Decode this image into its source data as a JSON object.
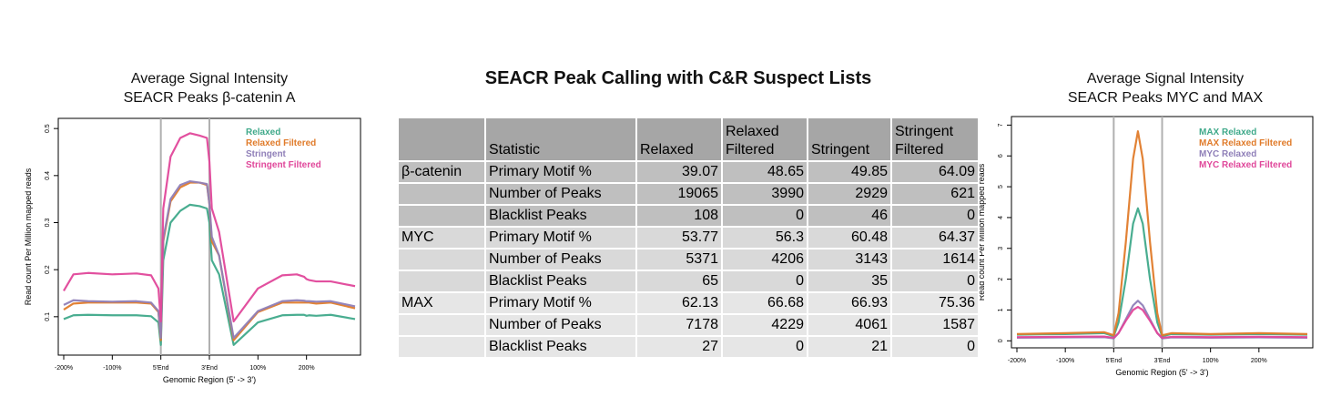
{
  "left_chart_title": [
    "Average Signal Intensity",
    "SEACR Peaks β-catenin A"
  ],
  "center_title": "SEACR Peak Calling with C&R Suspect Lists",
  "right_chart_title": [
    "Average Signal Intensity",
    "SEACR Peaks MYC and MAX"
  ],
  "table": {
    "headers": [
      "",
      "Statistic",
      "Relaxed",
      "Relaxed Filtered",
      "Stringent",
      "Stringent Filtered"
    ],
    "rows": [
      [
        "β-catenin",
        "Primary Motif %",
        "39.07",
        "48.65",
        "49.85",
        "64.09"
      ],
      [
        "",
        "Number of Peaks",
        "19065",
        "3990",
        "2929",
        "621"
      ],
      [
        "",
        "Blacklist Peaks",
        "108",
        "0",
        "46",
        "0"
      ],
      [
        "MYC",
        "Primary Motif %",
        "53.77",
        "56.3",
        "60.48",
        "64.37"
      ],
      [
        "",
        "Number of Peaks",
        "5371",
        "4206",
        "3143",
        "1614"
      ],
      [
        "",
        "Blacklist Peaks",
        "65",
        "0",
        "35",
        "0"
      ],
      [
        "MAX",
        "Primary Motif %",
        "62.13",
        "66.68",
        "66.93",
        "75.36"
      ],
      [
        "",
        "Number of Peaks",
        "7178",
        "4229",
        "4061",
        "1587"
      ],
      [
        "",
        "Blacklist Peaks",
        "27",
        "0",
        "21",
        "0"
      ]
    ]
  },
  "chart_data": [
    {
      "type": "line",
      "title": "Average Signal Intensity SEACR Peaks β-catenin A",
      "xlabel": "Genomic Region (5' -> 3')",
      "ylabel": "Read count Per Million mapped reads",
      "x_ticks": [
        "-200%",
        "-100%",
        "5'End",
        "3'End",
        "100%",
        "200%"
      ],
      "y_ticks": [
        "0.1",
        "0.2",
        "0.3",
        "0.4",
        "0.5"
      ],
      "ylim": [
        0.03,
        0.51
      ],
      "legend_position": "top-right",
      "series": [
        {
          "name": "Relaxed",
          "color": "#3fa98a",
          "x": [
            -200,
            -180,
            -150,
            -100,
            -50,
            -20,
            -5,
            0,
            5,
            20,
            40,
            60,
            80,
            95,
            100,
            105,
            120,
            150,
            200,
            250,
            280,
            295,
            300,
            305,
            320,
            350,
            400
          ],
          "y": [
            0.095,
            0.103,
            0.104,
            0.103,
            0.103,
            0.101,
            0.088,
            0.04,
            0.22,
            0.3,
            0.325,
            0.338,
            0.335,
            0.33,
            0.3,
            0.22,
            0.19,
            0.04,
            0.088,
            0.103,
            0.104,
            0.104,
            0.102,
            0.103,
            0.102,
            0.104,
            0.095
          ],
          "_x_note": "x in % of region; 0 = 5'End, 100 = 3'End"
        },
        {
          "name": "Relaxed Filtered",
          "color": "#e07b2a",
          "x": [
            -200,
            -180,
            -150,
            -100,
            -50,
            -20,
            -5,
            0,
            5,
            20,
            40,
            60,
            80,
            95,
            100,
            105,
            120,
            150,
            200,
            250,
            280,
            295,
            300,
            305,
            320,
            350,
            400
          ],
          "y": [
            0.115,
            0.128,
            0.13,
            0.13,
            0.13,
            0.128,
            0.11,
            0.05,
            0.26,
            0.345,
            0.375,
            0.385,
            0.385,
            0.38,
            0.34,
            0.26,
            0.23,
            0.05,
            0.11,
            0.13,
            0.13,
            0.13,
            0.13,
            0.13,
            0.128,
            0.13,
            0.118
          ]
        },
        {
          "name": "Stringent",
          "color": "#8f7fb8",
          "x": [
            -200,
            -180,
            -150,
            -100,
            -50,
            -20,
            -5,
            0,
            5,
            20,
            40,
            60,
            80,
            95,
            100,
            105,
            120,
            150,
            200,
            250,
            280,
            295,
            300,
            305,
            320,
            350,
            400
          ],
          "y": [
            0.125,
            0.135,
            0.133,
            0.132,
            0.133,
            0.13,
            0.112,
            0.055,
            0.265,
            0.35,
            0.38,
            0.388,
            0.385,
            0.382,
            0.34,
            0.27,
            0.23,
            0.055,
            0.112,
            0.133,
            0.135,
            0.134,
            0.133,
            0.133,
            0.132,
            0.133,
            0.122
          ]
        },
        {
          "name": "Stringent Filtered",
          "color": "#e0479a",
          "x": [
            -200,
            -180,
            -150,
            -100,
            -50,
            -20,
            -5,
            0,
            5,
            20,
            40,
            60,
            80,
            95,
            100,
            105,
            120,
            150,
            200,
            250,
            280,
            295,
            300,
            305,
            320,
            350,
            400
          ],
          "y": [
            0.155,
            0.19,
            0.193,
            0.19,
            0.192,
            0.188,
            0.16,
            0.09,
            0.33,
            0.44,
            0.48,
            0.49,
            0.485,
            0.48,
            0.43,
            0.33,
            0.28,
            0.09,
            0.16,
            0.188,
            0.19,
            0.185,
            0.18,
            0.178,
            0.175,
            0.175,
            0.165
          ]
        }
      ]
    },
    {
      "type": "line",
      "title": "Average Signal Intensity SEACR Peaks MYC and MAX",
      "xlabel": "Genomic Region (5' -> 3')",
      "ylabel": "Read count Per Million mapped reads",
      "x_ticks": [
        "-200%",
        "-100%",
        "5'End",
        "3'End",
        "100%",
        "200%"
      ],
      "y_ticks": [
        "0",
        "1",
        "2",
        "3",
        "4",
        "5",
        "6",
        "7"
      ],
      "ylim": [
        -0.05,
        7.1
      ],
      "legend_position": "top-right",
      "series": [
        {
          "name": "MAX Relaxed",
          "color": "#3fa98a",
          "x": [
            -200,
            -100,
            -20,
            0,
            10,
            25,
            40,
            50,
            60,
            75,
            90,
            100,
            120,
            200,
            300,
            400
          ],
          "y": [
            0.2,
            0.22,
            0.25,
            0.15,
            0.6,
            2.0,
            3.8,
            4.3,
            3.8,
            2.0,
            0.6,
            0.15,
            0.22,
            0.2,
            0.22,
            0.2
          ]
        },
        {
          "name": "MAX Relaxed Filtered",
          "color": "#e07b2a",
          "x": [
            -200,
            -100,
            -20,
            0,
            10,
            25,
            40,
            50,
            60,
            75,
            90,
            100,
            120,
            200,
            300,
            400
          ],
          "y": [
            0.22,
            0.25,
            0.28,
            0.18,
            0.9,
            3.2,
            5.9,
            6.8,
            5.9,
            3.2,
            0.9,
            0.18,
            0.25,
            0.22,
            0.25,
            0.22
          ]
        },
        {
          "name": "MYC Relaxed",
          "color": "#8f7fb8",
          "x": [
            -200,
            -100,
            -20,
            0,
            10,
            25,
            40,
            50,
            60,
            75,
            90,
            100,
            120,
            200,
            300,
            400
          ],
          "y": [
            0.1,
            0.11,
            0.12,
            0.08,
            0.25,
            0.7,
            1.15,
            1.3,
            1.15,
            0.7,
            0.25,
            0.08,
            0.11,
            0.1,
            0.11,
            0.1
          ]
        },
        {
          "name": "MYC Relaxed Filtered",
          "color": "#e0479a",
          "x": [
            -200,
            -100,
            -20,
            0,
            10,
            25,
            40,
            50,
            60,
            75,
            90,
            100,
            120,
            200,
            300,
            400
          ],
          "y": [
            0.12,
            0.13,
            0.14,
            0.1,
            0.25,
            0.65,
            1.0,
            1.1,
            1.0,
            0.65,
            0.25,
            0.1,
            0.13,
            0.12,
            0.13,
            0.12
          ]
        }
      ]
    }
  ]
}
